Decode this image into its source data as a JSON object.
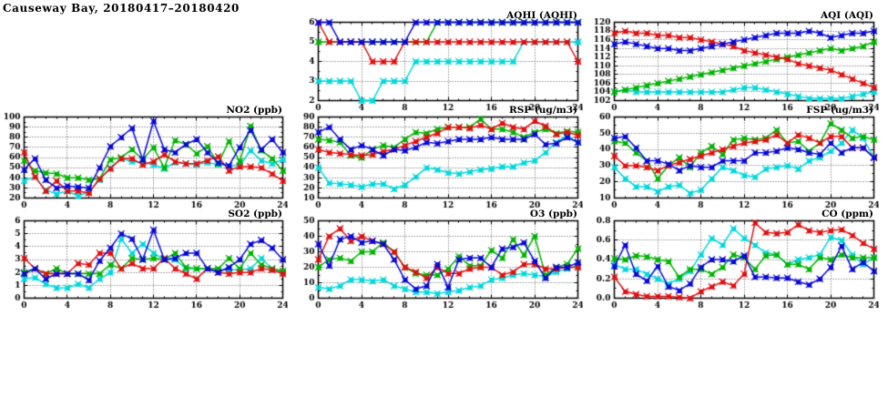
{
  "title": "Causeway Bay, 20180417–20180420",
  "colors": {
    "red": "#e01010",
    "green": "#00b400",
    "blue": "#0808d8",
    "cyan": "#00d8dc"
  },
  "x_axis": {
    "min": 0,
    "max": 24,
    "labels": [
      0,
      4,
      8,
      12,
      16,
      20,
      24
    ],
    "grid": [
      4,
      8,
      12,
      16,
      20
    ],
    "minor_step": 1
  },
  "chart_data": [
    {
      "id": "aqhi",
      "type": "line",
      "title": "AQHI (AQHI)",
      "xlabel": "",
      "ylabel": "",
      "ylim": [
        2,
        6
      ],
      "ytick_step": 1,
      "ydec": 0,
      "grid": true,
      "x_range": [
        0,
        24
      ],
      "legend": "none",
      "series": [
        {
          "name": "cyan",
          "values": [
            3,
            3,
            3,
            3,
            2,
            2,
            3,
            3,
            3,
            4,
            4,
            4,
            4,
            4,
            4,
            4,
            4,
            4,
            4,
            5,
            5,
            5,
            5,
            5,
            5
          ]
        },
        {
          "name": "green",
          "values": [
            5,
            5,
            5,
            5,
            5,
            5,
            5,
            5,
            5,
            5,
            5,
            6,
            6,
            6,
            6,
            6,
            6,
            6,
            6,
            6,
            6,
            6,
            6,
            6,
            6
          ]
        },
        {
          "name": "red",
          "values": [
            6,
            5,
            5,
            5,
            5,
            4,
            4,
            4,
            5,
            5,
            5,
            5,
            5,
            5,
            5,
            5,
            5,
            5,
            5,
            5,
            5,
            5,
            5,
            5,
            4
          ]
        },
        {
          "name": "blue",
          "values": [
            6,
            6,
            5,
            5,
            5,
            5,
            5,
            5,
            5,
            6,
            6,
            6,
            6,
            6,
            6,
            6,
            6,
            6,
            6,
            6,
            6,
            6,
            6,
            6,
            6
          ]
        }
      ]
    },
    {
      "id": "aqi",
      "type": "line",
      "title": "AQI (AQI)",
      "xlabel": "",
      "ylabel": "",
      "ylim": [
        102,
        120
      ],
      "ytick_step": 2,
      "ydec": 0,
      "grid": true,
      "x_range": [
        0,
        24
      ],
      "legend": "none",
      "series": [
        {
          "name": "cyan",
          "values": [
            104,
            104.5,
            104,
            104,
            104,
            104,
            104,
            104,
            104,
            104,
            104,
            104.5,
            105,
            105,
            104.5,
            104,
            103.5,
            103,
            102.5,
            102.5,
            102.5,
            102.5,
            103,
            103.5,
            104
          ]
        },
        {
          "name": "green",
          "values": [
            104,
            104.5,
            105,
            105.5,
            106,
            106.5,
            107,
            107.5,
            108,
            108.5,
            109,
            109.5,
            110,
            110.5,
            111,
            111.5,
            112,
            112.5,
            113,
            113.5,
            114,
            113.5,
            114,
            114.5,
            115.5
          ]
        },
        {
          "name": "red",
          "values": [
            117.5,
            118,
            117.5,
            117.5,
            117,
            117,
            116.5,
            116.5,
            116,
            115.5,
            115,
            114.5,
            113.5,
            113,
            112.5,
            112,
            111.5,
            110.5,
            110,
            109.5,
            109,
            108,
            107,
            106,
            105
          ]
        },
        {
          "name": "blue",
          "values": [
            115,
            115.5,
            115,
            114.5,
            114,
            114,
            113.5,
            113.5,
            114,
            114.5,
            115,
            115.5,
            116,
            116.5,
            117,
            117.5,
            117.5,
            117.5,
            118,
            117.5,
            116.5,
            117,
            117.5,
            117.5,
            118
          ]
        }
      ]
    },
    {
      "id": "no2",
      "type": "line",
      "title": "NO2 (ppb)",
      "xlabel": "",
      "ylabel": "",
      "ylim": [
        20,
        100
      ],
      "ytick_step": 10,
      "ydec": 0,
      "grid": true,
      "x_range": [
        0,
        24
      ],
      "legend": "none",
      "series": [
        {
          "name": "cyan",
          "values": [
            37,
            41,
            28,
            24,
            27,
            22,
            26,
            38,
            50,
            59,
            56,
            55,
            53,
            49,
            55,
            54,
            53,
            55,
            53,
            52,
            52,
            67,
            57,
            54,
            58
          ]
        },
        {
          "name": "green",
          "values": [
            57,
            47,
            45,
            44,
            40,
            40,
            38,
            39,
            58,
            60,
            68,
            58,
            70,
            50,
            77,
            73,
            64,
            71,
            54,
            76,
            56,
            91,
            67,
            59,
            47
          ]
        },
        {
          "name": "red",
          "values": [
            65,
            41,
            27,
            37,
            27,
            27,
            25,
            39,
            49,
            59,
            59,
            53,
            56,
            63,
            56,
            54,
            54,
            57,
            61,
            47,
            51,
            51,
            50,
            44,
            37
          ]
        },
        {
          "name": "blue",
          "values": [
            48,
            59,
            38,
            30,
            32,
            31,
            30,
            50,
            71,
            80,
            89,
            58,
            96,
            68,
            65,
            73,
            78,
            65,
            55,
            52,
            70,
            87,
            68,
            78,
            65
          ]
        }
      ]
    },
    {
      "id": "rsp",
      "type": "line",
      "title": "RSP (ug/m3)",
      "xlabel": "",
      "ylabel": "",
      "ylim": [
        10,
        90
      ],
      "ytick_step": 10,
      "ydec": 0,
      "grid": true,
      "x_range": [
        0,
        24
      ],
      "legend": "none",
      "series": [
        {
          "name": "cyan",
          "values": [
            40,
            25,
            24,
            23,
            21,
            24,
            24,
            19,
            23,
            31,
            40,
            38,
            35,
            34,
            36,
            38,
            39,
            41,
            41,
            45,
            47,
            55,
            65,
            72,
            65
          ]
        },
        {
          "name": "green",
          "values": [
            68,
            67,
            65,
            52,
            50,
            58,
            62,
            60,
            68,
            75,
            74,
            78,
            80,
            80,
            80,
            88,
            78,
            78,
            75,
            70,
            75,
            78,
            74,
            76,
            75
          ]
        },
        {
          "name": "red",
          "values": [
            58,
            55,
            54,
            53,
            52,
            53,
            56,
            58,
            62,
            66,
            70,
            74,
            80,
            80,
            79,
            82,
            78,
            84,
            80,
            78,
            86,
            81,
            73,
            75,
            72
          ]
        },
        {
          "name": "blue",
          "values": [
            75,
            80,
            68,
            58,
            62,
            58,
            52,
            58,
            57,
            60,
            65,
            64,
            66,
            68,
            68,
            68,
            70,
            68,
            68,
            68,
            73,
            63,
            64,
            70,
            65
          ]
        }
      ]
    },
    {
      "id": "fsp",
      "type": "line",
      "title": "FSP (ug/m3)",
      "xlabel": "",
      "ylabel": "",
      "ylim": [
        10,
        60
      ],
      "ytick_step": 10,
      "ydec": 0,
      "grid": true,
      "x_range": [
        0,
        24
      ],
      "legend": "none",
      "series": [
        {
          "name": "cyan",
          "values": [
            29,
            22,
            17,
            17,
            14,
            17,
            18,
            13,
            15,
            22,
            29,
            27,
            24,
            23,
            28,
            29,
            30,
            28,
            33,
            35,
            39,
            44,
            52,
            47,
            35
          ]
        },
        {
          "name": "green",
          "values": [
            45,
            44,
            38,
            33,
            22,
            30,
            35,
            29,
            38,
            42,
            37,
            46,
            47,
            46,
            47,
            52,
            44,
            45,
            39,
            44,
            56,
            52,
            47,
            48,
            46
          ]
        },
        {
          "name": "red",
          "values": [
            36,
            30,
            30,
            29,
            27,
            30,
            32,
            34,
            36,
            38,
            40,
            42,
            44,
            45,
            46,
            49,
            44,
            49,
            47,
            44,
            48,
            48,
            41,
            41,
            35
          ]
        },
        {
          "name": "blue",
          "values": [
            47,
            48,
            41,
            33,
            33,
            31,
            27,
            30,
            29,
            29,
            33,
            33,
            33,
            38,
            38,
            39,
            41,
            40,
            38,
            37,
            44,
            38,
            41,
            41,
            35
          ]
        }
      ]
    },
    {
      "id": "so2",
      "type": "line",
      "title": "SO2 (ppb)",
      "xlabel": "",
      "ylabel": "",
      "ylim": [
        0,
        6
      ],
      "ytick_step": 1,
      "ydec": 0,
      "grid": true,
      "x_range": [
        0,
        24
      ],
      "legend": "none",
      "series": [
        {
          "name": "cyan",
          "values": [
            1.5,
            1.6,
            1.1,
            0.8,
            0.8,
            1.1,
            0.8,
            1.5,
            2.0,
            4.6,
            3.5,
            4.2,
            3.5,
            3.0,
            3.0,
            2.3,
            2.3,
            2.3,
            2.2,
            2.2,
            2.2,
            2.3,
            3.1,
            2.3,
            2.0
          ]
        },
        {
          "name": "green",
          "values": [
            2.0,
            2.3,
            1.9,
            2.3,
            1.9,
            1.9,
            1.9,
            1.9,
            2.6,
            2.3,
            3.1,
            3.0,
            3.1,
            3.0,
            3.5,
            2.4,
            2.3,
            2.3,
            2.3,
            3.1,
            2.3,
            3.5,
            2.6,
            2.3,
            2.1
          ]
        },
        {
          "name": "red",
          "values": [
            3.1,
            2.3,
            1.9,
            1.9,
            1.9,
            2.7,
            2.6,
            3.5,
            3.5,
            2.3,
            2.7,
            2.3,
            2.3,
            3.1,
            2.3,
            1.9,
            1.5,
            2.3,
            2.0,
            1.9,
            2.0,
            2.0,
            2.3,
            2.2,
            1.9
          ]
        },
        {
          "name": "blue",
          "values": [
            1.9,
            2.3,
            1.5,
            1.9,
            1.9,
            1.9,
            1.4,
            2.9,
            3.9,
            5.0,
            4.6,
            3.0,
            5.3,
            3.0,
            3.1,
            3.5,
            3.5,
            2.3,
            2.0,
            2.4,
            3.0,
            4.2,
            4.5,
            3.9,
            3.0
          ]
        }
      ]
    },
    {
      "id": "o3",
      "type": "line",
      "title": "O3 (ppb)",
      "xlabel": "",
      "ylabel": "",
      "ylim": [
        0,
        50
      ],
      "ytick_step": 10,
      "ydec": 0,
      "grid": true,
      "x_range": [
        0,
        24
      ],
      "legend": "none",
      "series": [
        {
          "name": "cyan",
          "values": [
            7,
            6,
            8,
            12,
            12,
            11,
            12,
            8,
            6,
            4,
            4,
            3,
            4,
            5,
            7,
            8,
            12,
            13,
            15,
            16,
            15,
            14,
            17,
            19,
            21
          ]
        },
        {
          "name": "green",
          "values": [
            20,
            25,
            26,
            24,
            30,
            30,
            36,
            30,
            20,
            16,
            15,
            15,
            19,
            27,
            21,
            21,
            31,
            26,
            38,
            28,
            40,
            15,
            20,
            22,
            32
          ]
        },
        {
          "name": "red",
          "values": [
            25,
            40,
            45,
            37,
            40,
            37,
            35,
            30,
            20,
            17,
            13,
            20,
            16,
            16,
            19,
            20,
            20,
            15,
            17,
            22,
            22,
            19,
            19,
            20,
            20
          ]
        },
        {
          "name": "blue",
          "values": [
            35,
            21,
            38,
            40,
            36,
            37,
            35,
            25,
            12,
            6,
            8,
            22,
            7,
            25,
            26,
            26,
            20,
            32,
            33,
            36,
            24,
            13,
            20,
            20,
            23
          ]
        }
      ]
    },
    {
      "id": "co",
      "type": "line",
      "title": "CO (ppm)",
      "xlabel": "",
      "ylabel": "",
      "ylim": [
        0,
        0.8
      ],
      "ytick_step": 0.2,
      "ydec": 1,
      "grid": true,
      "x_range": [
        0,
        24
      ],
      "legend": "none",
      "series": [
        {
          "name": "cyan",
          "values": [
            0.35,
            0.3,
            0.3,
            0.25,
            0.2,
            0.15,
            0.2,
            0.28,
            0.45,
            0.62,
            0.55,
            0.72,
            0.62,
            0.55,
            0.47,
            0.45,
            0.35,
            0.4,
            0.42,
            0.45,
            0.63,
            0.6,
            0.45,
            0.35,
            0.42
          ]
        },
        {
          "name": "green",
          "values": [
            0.41,
            0.4,
            0.44,
            0.43,
            0.4,
            0.38,
            0.22,
            0.3,
            0.3,
            0.25,
            0.32,
            0.45,
            0.42,
            0.3,
            0.44,
            0.45,
            0.35,
            0.35,
            0.3,
            0.42,
            0.4,
            0.45,
            0.42,
            0.42,
            0.42
          ]
        },
        {
          "name": "red",
          "values": [
            0.22,
            0.07,
            0.04,
            0.02,
            0.02,
            0.02,
            0.01,
            0.0,
            0.07,
            0.12,
            0.17,
            0.13,
            0.25,
            0.78,
            0.68,
            0.67,
            0.68,
            0.76,
            0.7,
            0.68,
            0.7,
            0.71,
            0.65,
            0.57,
            0.51
          ]
        },
        {
          "name": "blue",
          "values": [
            0.33,
            0.55,
            0.25,
            0.18,
            0.33,
            0.12,
            0.08,
            0.15,
            0.32,
            0.4,
            0.4,
            0.38,
            0.44,
            0.22,
            0.22,
            0.21,
            0.21,
            0.17,
            0.14,
            0.2,
            0.32,
            0.54,
            0.3,
            0.37,
            0.28
          ]
        }
      ]
    }
  ]
}
